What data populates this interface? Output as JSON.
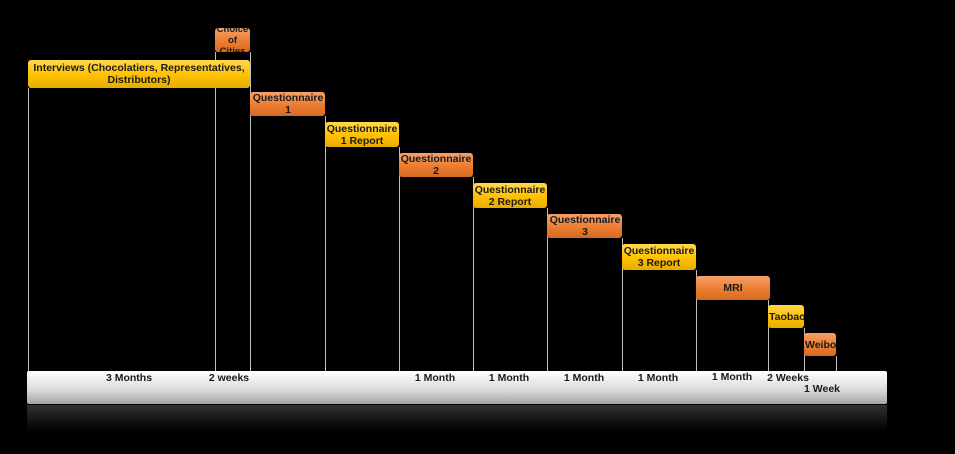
{
  "tasks": [
    {
      "label": "Interviews (Chocolatiers, Representatives, Distributors)",
      "color": "yellow"
    },
    {
      "label": "Choice of Cities",
      "color": "orange"
    },
    {
      "label": "Questionnaire 1",
      "color": "orange"
    },
    {
      "label": "Questionnaire 1 Report",
      "color": "yellow"
    },
    {
      "label": "Questionnaire 2",
      "color": "orange"
    },
    {
      "label": "Questionnaire 2 Report",
      "color": "yellow"
    },
    {
      "label": "Questionnaire 3",
      "color": "orange"
    },
    {
      "label": "Questionnaire 3 Report",
      "color": "yellow"
    },
    {
      "label": "MRI",
      "color": "orange"
    },
    {
      "label": "Taobao",
      "color": "yellow"
    },
    {
      "label": "Weibo",
      "color": "orange"
    }
  ],
  "durations": [
    "3 Months",
    "2 weeks",
    "1 Month",
    "1 Month",
    "1 Month",
    "1 Month",
    "1 Month",
    "2 Weeks",
    "1 Week"
  ],
  "colors": {
    "yellow": "#ffc000",
    "orange": "#ed7d31",
    "background": "#000000",
    "axis": "#d9d9d9"
  }
}
